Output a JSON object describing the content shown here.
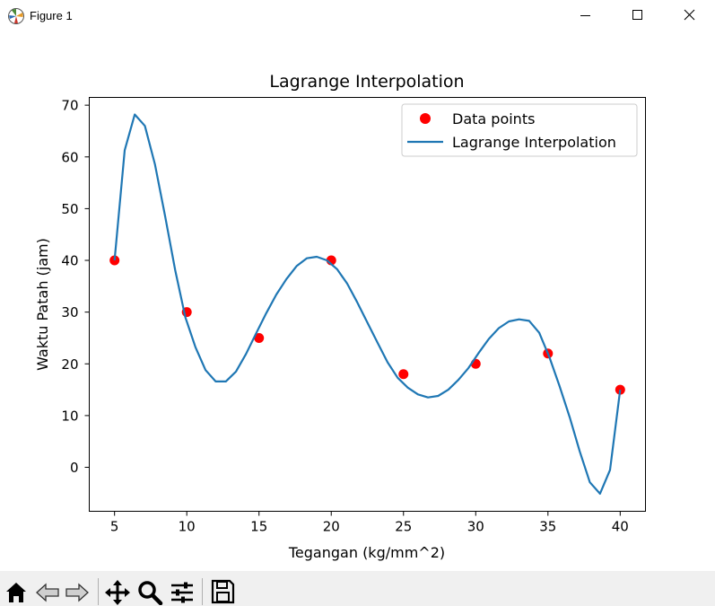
{
  "window": {
    "title": "Figure 1",
    "controls": [
      "minimize",
      "maximize",
      "close"
    ]
  },
  "toolbar": {
    "buttons": [
      "home-icon",
      "back-icon",
      "forward-icon",
      "pan-icon",
      "zoom-icon",
      "configure-subplots-icon",
      "save-icon"
    ]
  },
  "chart_data": {
    "type": "line",
    "title": "Lagrange Interpolation",
    "xlabel": "Tegangan (kg/mm^2)",
    "ylabel": "Waktu Patah (jam)",
    "xlim": [
      3.25,
      41.75
    ],
    "ylim": [
      -8.5,
      71.5
    ],
    "xticks": [
      5,
      10,
      15,
      20,
      25,
      30,
      35,
      40
    ],
    "yticks": [
      0,
      10,
      20,
      30,
      40,
      50,
      60,
      70
    ],
    "grid": false,
    "legend_position": "top-right",
    "colors": {
      "points": "#ff0000",
      "line": "#1f77b4"
    },
    "series": [
      {
        "name": "Data points",
        "kind": "scatter",
        "x": [
          5,
          10,
          15,
          20,
          25,
          30,
          35,
          40
        ],
        "y": [
          40,
          30,
          25,
          40,
          18,
          20,
          22,
          15
        ]
      },
      {
        "name": "Lagrange Interpolation",
        "kind": "line",
        "x": [
          5,
          5.7,
          6.4,
          7.1,
          7.8,
          8.5,
          9.2,
          9.9,
          10.6,
          11.3,
          12.0,
          12.7,
          13.4,
          14.1,
          14.8,
          15.5,
          16.2,
          16.9,
          17.6,
          18.3,
          19.0,
          19.7,
          20.4,
          21.1,
          21.8,
          22.5,
          23.2,
          23.9,
          24.6,
          25.3,
          26.0,
          26.7,
          27.4,
          28.1,
          28.8,
          29.5,
          30.2,
          30.9,
          31.6,
          32.3,
          33.0,
          33.7,
          34.4,
          35.1,
          35.8,
          36.5,
          37.2,
          37.9,
          38.6,
          39.3,
          40
        ],
        "y": [
          40,
          61.3,
          68.2,
          66.0,
          58.5,
          48.6,
          38.1,
          29.0,
          23.2,
          18.8,
          16.6,
          16.6,
          18.5,
          21.9,
          25.9,
          29.8,
          33.4,
          36.4,
          38.9,
          40.4,
          40.7,
          40.0,
          38.3,
          35.5,
          31.9,
          28.0,
          24.1,
          20.3,
          17.3,
          15.4,
          14.1,
          13.5,
          13.8,
          15.0,
          16.9,
          19.2,
          22.1,
          24.8,
          26.9,
          28.2,
          28.6,
          28.3,
          26.0,
          21.3,
          15.7,
          9.7,
          3.1,
          -2.9,
          -5.1,
          -0.5,
          15
        ]
      }
    ]
  }
}
